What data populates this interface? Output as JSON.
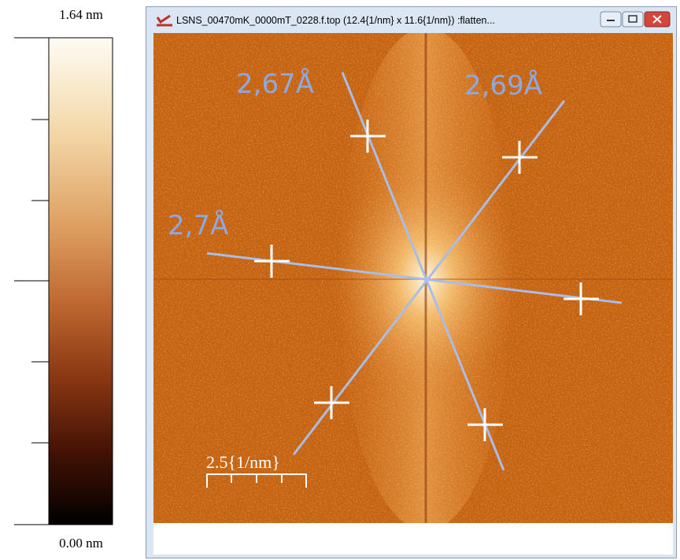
{
  "colorbar": {
    "max_label": "1.64 nm",
    "min_label": "0.00 nm"
  },
  "window": {
    "title": "LSNS_00470mK_0000mT_0228.f.top (12.4{1/nm} x 11.6{1/nm}) :flatten..."
  },
  "image": {
    "annotations": [
      "2,67Å",
      "2,69Å",
      "2,7Å"
    ],
    "scale_bar": "2.5{1/nm}"
  }
}
